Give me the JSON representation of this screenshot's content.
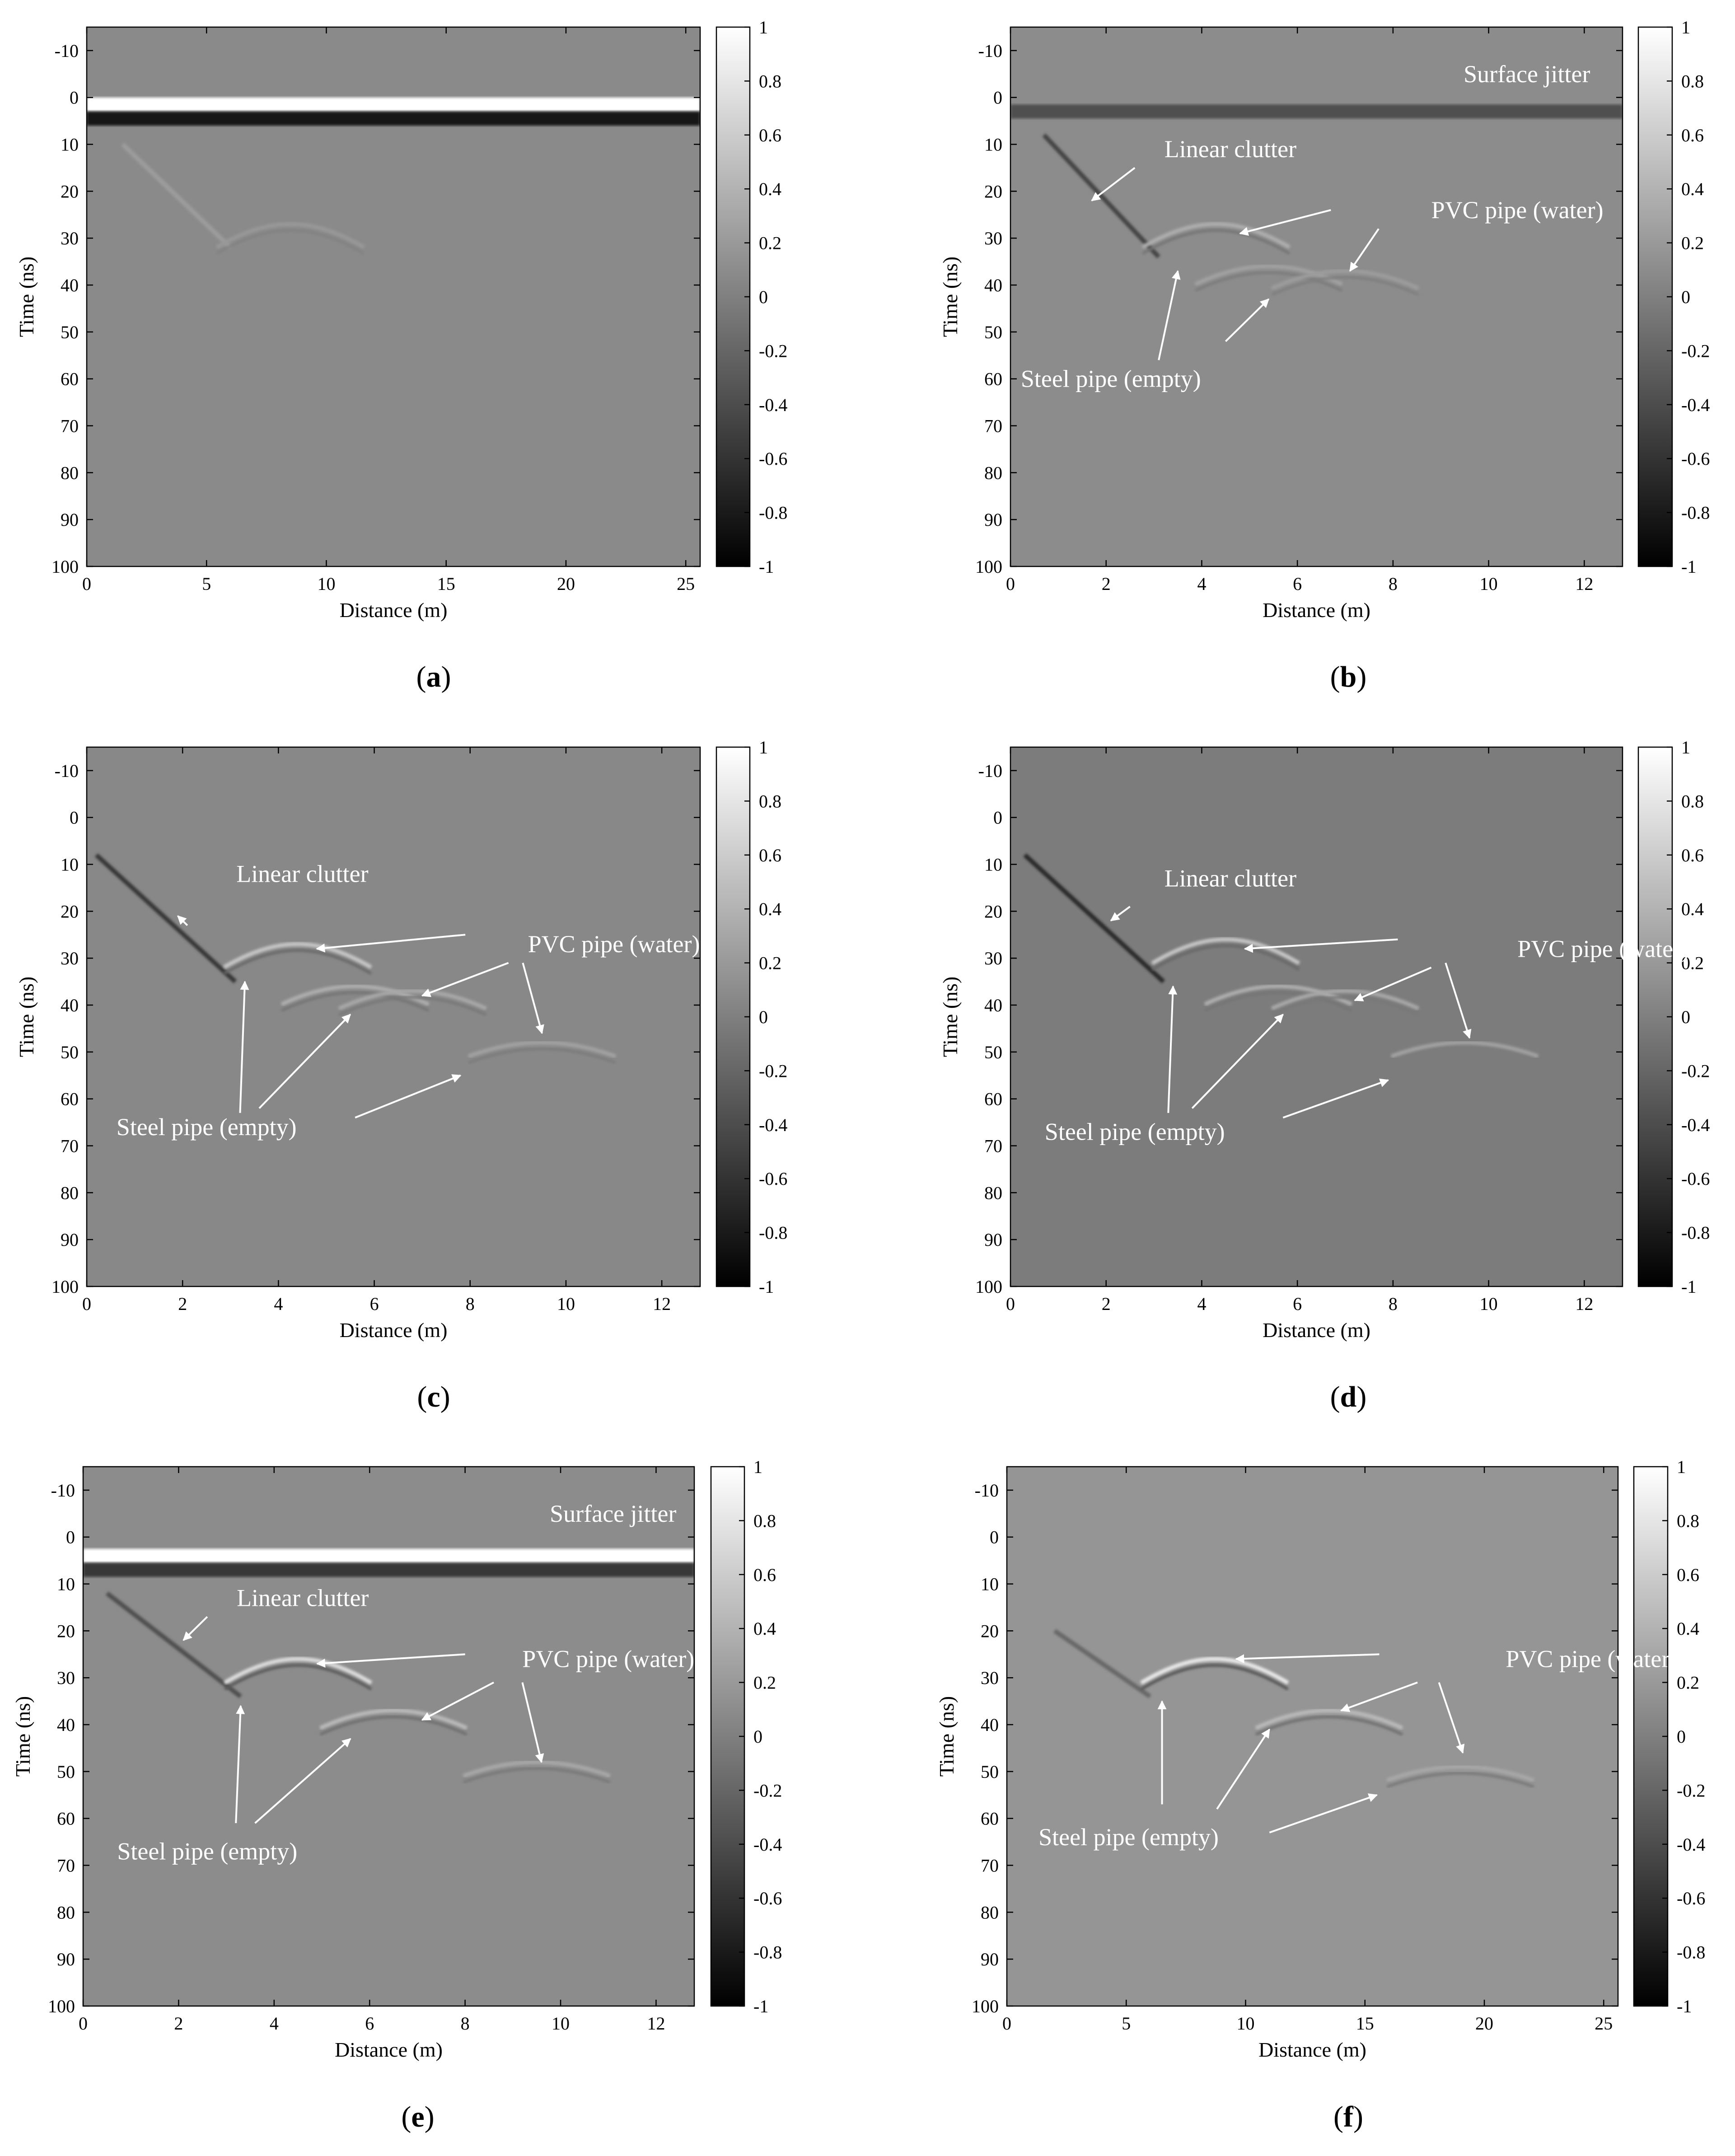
{
  "figure": {
    "colorbar": {
      "ticks": [
        "1",
        "0.8",
        "0.6",
        "0.4",
        "0.2",
        "0",
        "-0.2",
        "-0.4",
        "-0.6",
        "-0.8",
        "-1"
      ]
    },
    "panels": [
      {
        "id": "a",
        "caption": {
          "open": "(",
          "letter": "a",
          "close": ")"
        },
        "background": "#8a8a8a",
        "xlabel": "Distance (m)",
        "ylabel": "Time (ns)",
        "annotations": []
      },
      {
        "id": "b",
        "caption": {
          "open": "(",
          "letter": "b",
          "close": ")"
        },
        "background": "#8c8c8c",
        "xlabel": "Distance (m)",
        "ylabel": "Time (ns)",
        "annotations": [
          {
            "text": "Surface jitter",
            "x": 10.8,
            "y": -5
          },
          {
            "text": "Linear clutter",
            "x": 4.6,
            "y": 11
          },
          {
            "text": "PVC pipe (water)",
            "x": 10.6,
            "y": 24
          },
          {
            "text": "Steel pipe (empty)",
            "x": 2.1,
            "y": 60
          }
        ]
      },
      {
        "id": "c",
        "caption": {
          "open": "(",
          "letter": "c",
          "close": ")"
        },
        "background": "#888888",
        "xlabel": "Distance (m)",
        "ylabel": "Time (ns)",
        "annotations": [
          {
            "text": "Linear clutter",
            "x": 4.5,
            "y": 12
          },
          {
            "text": "PVC pipe (water)",
            "x": 11.0,
            "y": 27
          },
          {
            "text": "Steel pipe (empty)",
            "x": 2.5,
            "y": 66
          }
        ]
      },
      {
        "id": "d",
        "caption": {
          "open": "(",
          "letter": "d",
          "close": ")"
        },
        "background": "#7c7c7c",
        "xlabel": "Distance (m)",
        "ylabel": "Time (ns)",
        "annotations": [
          {
            "text": "Linear clutter",
            "x": 4.6,
            "y": 13
          },
          {
            "text": "PVC pipe (water)",
            "x": 12.4,
            "y": 28
          },
          {
            "text": "Steel pipe (empty)",
            "x": 2.6,
            "y": 67
          }
        ]
      },
      {
        "id": "e",
        "caption": {
          "open": "(",
          "letter": "e",
          "close": ")"
        },
        "background": "#8c8c8c",
        "xlabel": "Distance (m)",
        "ylabel": "Time (ns)",
        "annotations": [
          {
            "text": "Surface jitter",
            "x": 11.1,
            "y": -5
          },
          {
            "text": "Linear clutter",
            "x": 4.6,
            "y": 13
          },
          {
            "text": "PVC pipe (water)",
            "x": 11.0,
            "y": 26
          },
          {
            "text": "Steel pipe (empty)",
            "x": 2.6,
            "y": 67
          }
        ]
      },
      {
        "id": "f",
        "caption": {
          "open": "(",
          "letter": "f",
          "close": ")"
        },
        "background": "#959595",
        "xlabel": "Distance (m)",
        "ylabel": "Time (ns)",
        "annotations": [
          {
            "text": "PVC pipe (water)",
            "x": 24.5,
            "y": 26
          },
          {
            "text": "Steel pipe (empty)",
            "x": 5.1,
            "y": 64
          }
        ]
      }
    ]
  },
  "chart_data": [
    {
      "type": "heatmap",
      "panel": "a",
      "xlabel": "Distance (m)",
      "ylabel": "Time (ns)",
      "xlim": [
        0,
        25.6
      ],
      "ylim": [
        -15,
        100
      ],
      "y_reversed": true,
      "xticks": [
        0,
        5,
        10,
        15,
        20,
        25
      ],
      "yticks": [
        -10,
        0,
        10,
        20,
        30,
        40,
        50,
        60,
        70,
        80,
        90,
        100
      ],
      "colorbar": {
        "min": -1,
        "max": 1,
        "colormap": "gray"
      },
      "features": [
        {
          "kind": "band",
          "y": 1.5,
          "amplitude": 1.0
        },
        {
          "kind": "band",
          "y": 4.5,
          "amplitude": -1.0
        },
        {
          "kind": "line",
          "points": [
            [
              1.5,
              10
            ],
            [
              6.0,
              32
            ]
          ],
          "amplitude": 0.15
        },
        {
          "kind": "hyperbola",
          "x0": 8.5,
          "t0": 27,
          "amplitude": 0.12
        }
      ]
    },
    {
      "type": "heatmap",
      "panel": "b",
      "xlabel": "Distance (m)",
      "ylabel": "Time (ns)",
      "xlim": [
        0,
        12.8
      ],
      "ylim": [
        -15,
        100
      ],
      "y_reversed": true,
      "xticks": [
        0,
        2,
        4,
        6,
        8,
        10,
        12
      ],
      "yticks": [
        -10,
        0,
        10,
        20,
        30,
        40,
        50,
        60,
        70,
        80,
        90,
        100
      ],
      "colorbar": {
        "min": -1,
        "max": 1,
        "colormap": "gray"
      },
      "features": [
        {
          "kind": "band",
          "y": 3,
          "amplitude": -0.5
        },
        {
          "kind": "line",
          "points": [
            [
              0.7,
              8
            ],
            [
              3.1,
              34
            ]
          ],
          "amplitude": -0.6
        },
        {
          "kind": "hyperbola",
          "x0": 4.3,
          "t0": 27,
          "amplitude": 0.3
        },
        {
          "kind": "hyperbola",
          "x0": 5.4,
          "t0": 36,
          "amplitude": 0.2
        },
        {
          "kind": "hyperbola",
          "x0": 7.0,
          "t0": 37,
          "amplitude": 0.15
        }
      ]
    },
    {
      "type": "heatmap",
      "panel": "c",
      "xlabel": "Distance (m)",
      "ylabel": "Time (ns)",
      "xlim": [
        0,
        12.8
      ],
      "ylim": [
        -15,
        100
      ],
      "y_reversed": true,
      "xticks": [
        0,
        2,
        4,
        6,
        8,
        10,
        12
      ],
      "yticks": [
        -10,
        0,
        10,
        20,
        30,
        40,
        50,
        60,
        70,
        80,
        90,
        100
      ],
      "colorbar": {
        "min": -1,
        "max": 1,
        "colormap": "gray"
      },
      "features": [
        {
          "kind": "line",
          "points": [
            [
              0.2,
              8
            ],
            [
              3.1,
              35
            ]
          ],
          "amplitude": -0.7
        },
        {
          "kind": "hyperbola",
          "x0": 4.4,
          "t0": 27,
          "amplitude": 0.5
        },
        {
          "kind": "hyperbola",
          "x0": 5.6,
          "t0": 36,
          "amplitude": 0.3
        },
        {
          "kind": "hyperbola",
          "x0": 6.8,
          "t0": 37,
          "amplitude": 0.25
        },
        {
          "kind": "hyperbola",
          "x0": 9.5,
          "t0": 48,
          "amplitude": 0.2
        }
      ]
    },
    {
      "type": "heatmap",
      "panel": "d",
      "xlabel": "Distance (m)",
      "ylabel": "Time (ns)",
      "xlim": [
        0,
        12.8
      ],
      "ylim": [
        -15,
        100
      ],
      "y_reversed": true,
      "xticks": [
        0,
        2,
        4,
        6,
        8,
        10,
        12
      ],
      "yticks": [
        -10,
        0,
        10,
        20,
        30,
        40,
        50,
        60,
        70,
        80,
        90,
        100
      ],
      "colorbar": {
        "min": -1,
        "max": 1,
        "colormap": "gray"
      },
      "features": [
        {
          "kind": "line",
          "points": [
            [
              0.3,
              8
            ],
            [
              3.2,
              35
            ]
          ],
          "amplitude": -0.8
        },
        {
          "kind": "hyperbola",
          "x0": 4.5,
          "t0": 26,
          "amplitude": 0.5
        },
        {
          "kind": "hyperbola",
          "x0": 5.6,
          "t0": 36,
          "amplitude": 0.3
        },
        {
          "kind": "hyperbola",
          "x0": 7.0,
          "t0": 37,
          "amplitude": 0.25
        },
        {
          "kind": "hyperbola",
          "x0": 9.5,
          "t0": 48,
          "amplitude": 0.2
        }
      ]
    },
    {
      "type": "heatmap",
      "panel": "e",
      "xlabel": "Distance (m)",
      "ylabel": "Time (ns)",
      "xlim": [
        0,
        12.8
      ],
      "ylim": [
        -15,
        100
      ],
      "y_reversed": true,
      "xticks": [
        0,
        2,
        4,
        6,
        8,
        10,
        12
      ],
      "yticks": [
        -10,
        0,
        10,
        20,
        30,
        40,
        50,
        60,
        70,
        80,
        90,
        100
      ],
      "colorbar": {
        "min": -1,
        "max": 1,
        "colormap": "gray"
      },
      "features": [
        {
          "kind": "band",
          "y": 4,
          "amplitude": 1.0
        },
        {
          "kind": "band",
          "y": 7,
          "amplitude": -0.7
        },
        {
          "kind": "line",
          "points": [
            [
              0.5,
              12
            ],
            [
              3.3,
              34
            ]
          ],
          "amplitude": -0.5
        },
        {
          "kind": "hyperbola",
          "x0": 4.5,
          "t0": 26,
          "amplitude": 0.7
        },
        {
          "kind": "hyperbola",
          "x0": 6.5,
          "t0": 37,
          "amplitude": 0.4
        },
        {
          "kind": "hyperbola",
          "x0": 9.5,
          "t0": 48,
          "amplitude": 0.25
        }
      ]
    },
    {
      "type": "heatmap",
      "panel": "f",
      "xlabel": "Distance (m)",
      "ylabel": "Time (ns)",
      "xlim": [
        0,
        25.6
      ],
      "ylim": [
        -15,
        100
      ],
      "y_reversed": true,
      "xticks": [
        0,
        5,
        10,
        15,
        20,
        25
      ],
      "yticks": [
        -10,
        0,
        10,
        20,
        30,
        40,
        50,
        60,
        70,
        80,
        90,
        100
      ],
      "colorbar": {
        "min": -1,
        "max": 1,
        "colormap": "gray"
      },
      "features": [
        {
          "kind": "line",
          "points": [
            [
              2.0,
              20
            ],
            [
              6.0,
              34
            ]
          ],
          "amplitude": -0.3
        },
        {
          "kind": "hyperbola",
          "x0": 8.7,
          "t0": 26,
          "amplitude": 0.8
        },
        {
          "kind": "hyperbola",
          "x0": 13.5,
          "t0": 37,
          "amplitude": 0.4
        },
        {
          "kind": "hyperbola",
          "x0": 19.0,
          "t0": 49,
          "amplitude": 0.25
        }
      ]
    }
  ]
}
